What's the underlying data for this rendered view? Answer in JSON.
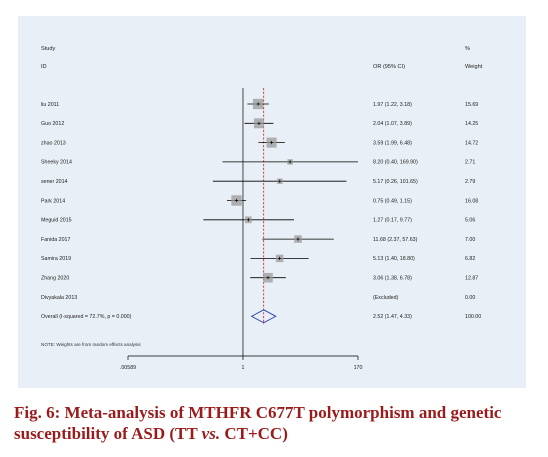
{
  "figure": {
    "caption_prefix": "Fig. 6: Meta-analysis of MTHFR C677T polymorphism and genetic susceptibility of ASD (TT ",
    "caption_vs": "vs.",
    "caption_suffix": " CT+CC)"
  },
  "header": {
    "study": "Study",
    "id": "ID",
    "or_ci": "OR (95% CI)",
    "percent": "%",
    "weight": "Weight"
  },
  "note": "NOTE: Weights are from random effects analysis",
  "axis": {
    "tick_left": ".00589",
    "tick_center": "1",
    "tick_right": "170"
  },
  "colors": {
    "effect_line": "#c81e1e",
    "weight_box": "#9a9a9a",
    "diamond": "#2b3fa8"
  },
  "chart_data": {
    "type": "forest",
    "scale": "log",
    "xlim": [
      0.00589,
      170
    ],
    "null_value": 1,
    "pooled_or": 2.52,
    "rows": [
      {
        "study": "liu 2011",
        "or": 1.97,
        "lo": 1.22,
        "hi": 3.18,
        "ci_text": "1.97 (1.22, 3.18)",
        "weight": 15.69,
        "weight_text": "15.69"
      },
      {
        "study": "Guo 2012",
        "or": 2.04,
        "lo": 1.07,
        "hi": 3.89,
        "ci_text": "2.04 (1.07, 3.89)",
        "weight": 14.25,
        "weight_text": "14.25"
      },
      {
        "study": "zhao 2013",
        "or": 3.59,
        "lo": 1.99,
        "hi": 6.48,
        "ci_text": "3.59 (1.99, 6.48)",
        "weight": 14.72,
        "weight_text": "14.72"
      },
      {
        "study": "Sheeky 2014",
        "or": 8.2,
        "lo": 0.4,
        "hi": 169.9,
        "ci_text": "8.20 (0.40, 169.90)",
        "weight": 2.71,
        "weight_text": "2.71"
      },
      {
        "study": "sener 2014",
        "or": 5.17,
        "lo": 0.26,
        "hi": 101.65,
        "ci_text": "5.17 (0.26, 101.65)",
        "weight": 2.79,
        "weight_text": "2.79"
      },
      {
        "study": "Park 2014",
        "or": 0.75,
        "lo": 0.49,
        "hi": 1.15,
        "ci_text": "0.75 (0.49, 1.15)",
        "weight": 16.08,
        "weight_text": "16.08"
      },
      {
        "study": "Meguid 2015",
        "or": 1.27,
        "lo": 0.17,
        "hi": 9.77,
        "ci_text": "1.27 (0.17, 9.77)",
        "weight": 5.06,
        "weight_text": "5.06"
      },
      {
        "study": "Fanida 2017",
        "or": 11.68,
        "lo": 2.37,
        "hi": 57.63,
        "ci_text": "11.68 (2.37, 57.63)",
        "weight": 7.0,
        "weight_text": "7.00"
      },
      {
        "study": "Samira 2019",
        "or": 5.13,
        "lo": 1.4,
        "hi": 18.8,
        "ci_text": "5.13 (1.40, 18.80)",
        "weight": 6.82,
        "weight_text": "6.82"
      },
      {
        "study": "Zhang 2020",
        "or": 3.06,
        "lo": 1.38,
        "hi": 6.78,
        "ci_text": "3.06 (1.38, 6.78)",
        "weight": 12.87,
        "weight_text": "12.87"
      },
      {
        "study": "Divyakala 2013",
        "or": null,
        "lo": null,
        "hi": null,
        "ci_text": "(Excluded)",
        "weight": 0,
        "weight_text": "0.00"
      }
    ],
    "overall": {
      "label": "Overall  (I-squared = 72.7%, p = 0.000)",
      "or": 2.52,
      "lo": 1.47,
      "hi": 4.33,
      "ci_text": "2.52 (1.47, 4.33)",
      "weight_text": "100.00"
    }
  }
}
